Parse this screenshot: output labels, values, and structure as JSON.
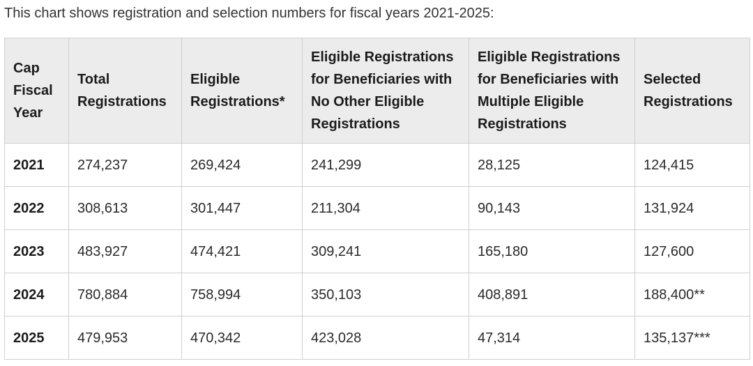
{
  "intro_text": "This chart shows registration and selection numbers for fiscal years 2021-2025:",
  "table": {
    "headers": [
      "Cap Fiscal Year",
      "Total Registrations",
      "Eligible Registrations*",
      "Eligible Registrations for Beneficiaries with No Other Eligible Registrations",
      "Eligible Registrations for Beneficiaries with Multiple Eligible Registrations",
      "Selected Registrations"
    ],
    "rows": [
      [
        "2021",
        "274,237",
        "269,424",
        "241,299",
        "28,125",
        "124,415"
      ],
      [
        "2022",
        "308,613",
        "301,447",
        "211,304",
        "90,143",
        "131,924"
      ],
      [
        "2023",
        "483,927",
        "474,421",
        "309,241",
        "165,180",
        "127,600"
      ],
      [
        "2024",
        "780,884",
        "758,994",
        "350,103",
        "408,891",
        "188,400**"
      ],
      [
        "2025",
        "479,953",
        "470,342",
        "423,028",
        "47,314",
        "135,137***"
      ]
    ]
  }
}
